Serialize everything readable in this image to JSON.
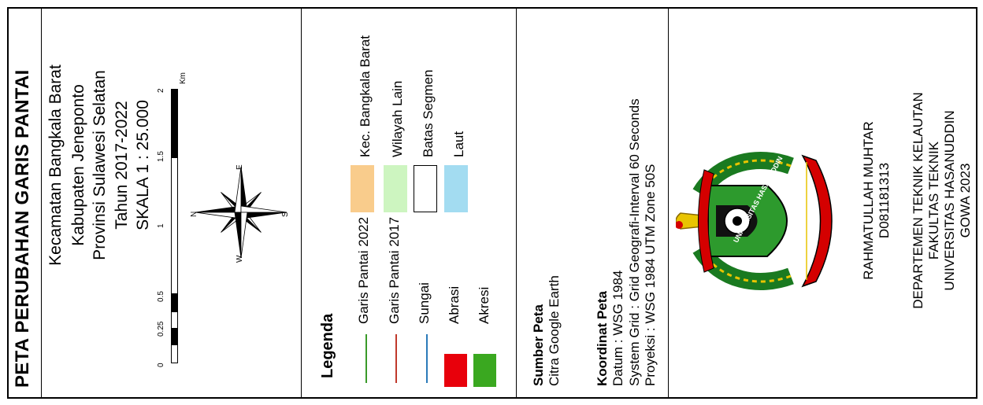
{
  "title": "PETA PERUBAHAN GARIS PANTAI",
  "location": {
    "line1": "Kecamatan Bangkala Barat",
    "line2": "Kabupaten Jeneponto",
    "line3": "Provinsi Sulawesi Selatan",
    "line4": "Tahun 2017-2022",
    "scale": "SKALA 1 : 25.000"
  },
  "scalebar": {
    "ticks": [
      "0",
      "0.25",
      "0.5",
      "1",
      "1.5",
      "2"
    ],
    "unit": "Km"
  },
  "compass": {
    "n": "N",
    "e": "E",
    "s": "S",
    "w": "W"
  },
  "legend": {
    "heading": "Legenda",
    "items": [
      {
        "label": "Garis Pantai 2022",
        "color": "#3a9a2a"
      },
      {
        "label": "Garis Pantai 2017",
        "color": "#c0392b"
      },
      {
        "label": "Sungai",
        "color": "#2b7bb9"
      },
      {
        "label": "Abrasi",
        "color": "#e8000b"
      },
      {
        "label": "Akresi",
        "color": "#3aa820"
      },
      {
        "label": "Kec. Bangkala Barat",
        "color": "#f9cc8c"
      },
      {
        "label": "Wilayah Lain",
        "color": "#cdf5c0"
      },
      {
        "label": "Batas Segmen",
        "color": "#ffffff"
      },
      {
        "label": "Laut",
        "color": "#a3dcf1"
      }
    ]
  },
  "source": {
    "heading": "Sumber Peta",
    "value": "Citra Google Earth"
  },
  "coords": {
    "heading": "Koordinat Peta",
    "datum": "Datum : WSG 1984",
    "system": "System Grid : Grid Geografi-Interval 60 Seconds",
    "projection": "Proyeksi : WSG 1984 UTM Zone 50S"
  },
  "logo": {
    "text": "UNIVERSITAS HASANUDDIN"
  },
  "author": {
    "name": "RAHMATULLAH MUHTAR",
    "id": "D081181313"
  },
  "institution": {
    "dept": "DEPARTEMEN TEKNIK KELAUTAN",
    "faculty": "FAKULTAS TEKNIK",
    "university": "UNIVERSITAS HASANUDDIN",
    "place_year": "GOWA 2023"
  }
}
